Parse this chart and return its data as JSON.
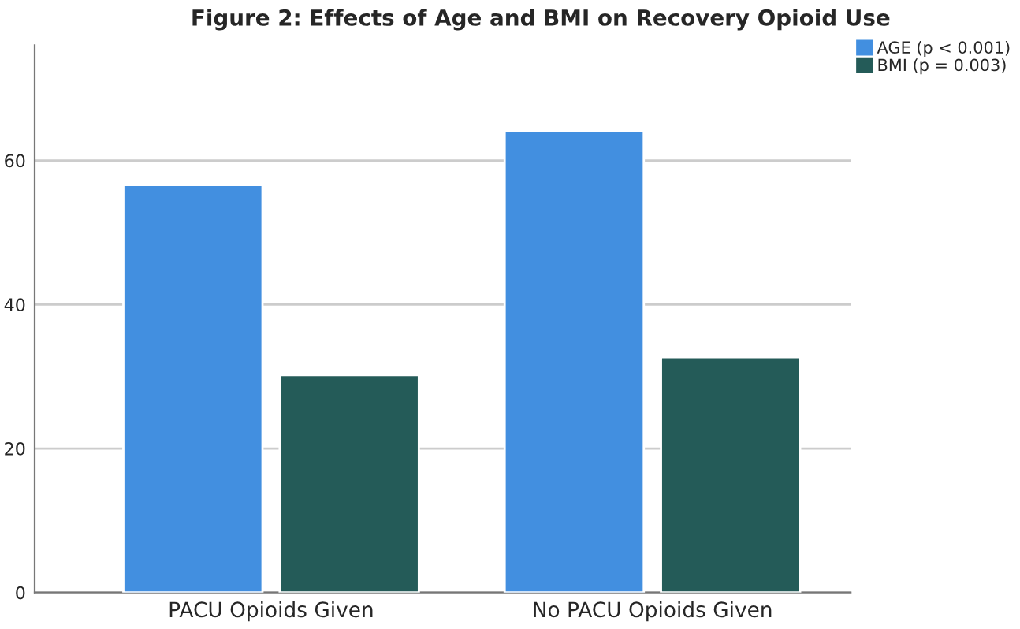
{
  "chart_data": {
    "type": "bar",
    "title": "Figure 2: Effects of Age and BMI on Recovery Opioid Use",
    "categories": [
      "PACU Opioids Given",
      "No PACU Opioids Given"
    ],
    "series": [
      {
        "name": "AGE (p < 0.001)",
        "color": "#428fe0",
        "values": [
          56.6,
          64.1
        ]
      },
      {
        "name": "BMI (p = 0.003)",
        "color": "#245b58",
        "values": [
          30.2,
          32.7
        ]
      }
    ],
    "ylim": [
      0,
      76
    ],
    "yticks": [
      0,
      20,
      40,
      60
    ],
    "grid": "y",
    "legend": "top right"
  }
}
